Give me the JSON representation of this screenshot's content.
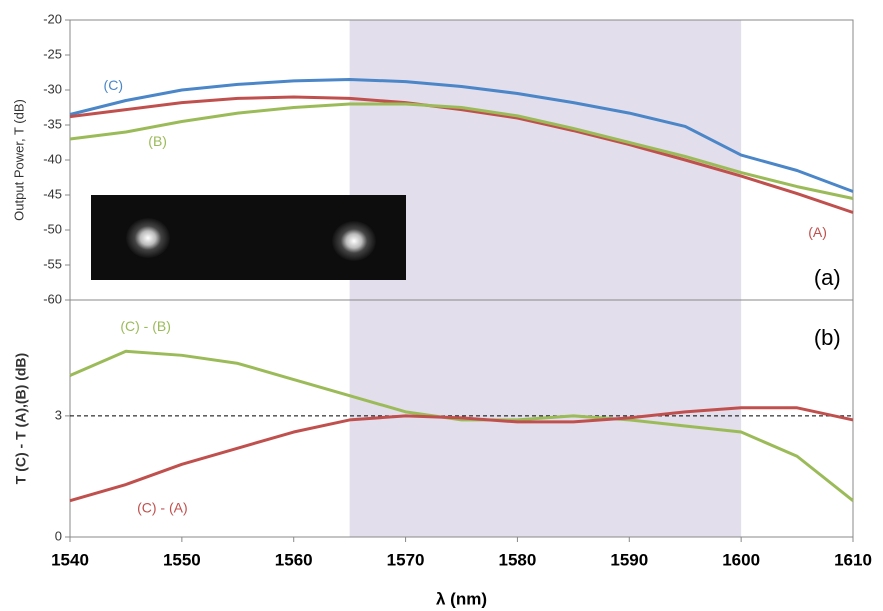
{
  "chart_data": [
    {
      "type": "line",
      "ylabel": "Output Power, T (dB)",
      "xlim": [
        1540,
        1610
      ],
      "ylim": [
        -60,
        -20
      ],
      "yticks": [
        -20,
        -25,
        -30,
        -35,
        -40,
        -45,
        -50,
        -55,
        -60
      ],
      "shaded_region": [
        1565,
        1600
      ],
      "x": [
        1540,
        1545,
        1550,
        1555,
        1560,
        1565,
        1570,
        1575,
        1580,
        1585,
        1590,
        1595,
        1600,
        1605,
        1610
      ],
      "series": [
        {
          "name": "(C)",
          "color": "#4a86c8",
          "values": [
            -33.5,
            -31.5,
            -30,
            -29.2,
            -28.7,
            -28.5,
            -28.8,
            -29.5,
            -30.5,
            -31.8,
            -33.3,
            -35.2,
            -39.3,
            -41.5,
            -44.5
          ]
        },
        {
          "name": "(A)",
          "color": "#c0504d",
          "values": [
            -33.8,
            -32.8,
            -31.8,
            -31.2,
            -31,
            -31.2,
            -31.8,
            -32.8,
            -34,
            -35.8,
            -37.8,
            -40,
            -42.3,
            -44.8,
            -47.5
          ]
        },
        {
          "name": "(B)",
          "color": "#9bbb59",
          "values": [
            -37,
            -36,
            -34.5,
            -33.3,
            -32.5,
            -32,
            -32,
            -32.5,
            -33.7,
            -35.5,
            -37.5,
            -39.5,
            -41.8,
            -43.8,
            -45.5
          ]
        }
      ],
      "annotations": [
        {
          "text": "(C)",
          "x": 1543,
          "y": -29.5,
          "color": "#4a86c8"
        },
        {
          "text": "(B)",
          "x": 1547,
          "y": -37.5,
          "color": "#9bbb59"
        },
        {
          "text": "(A)",
          "x": 1606,
          "y": -50.5,
          "color": "#c0504d"
        },
        {
          "text": "(a)",
          "x": 1606.5,
          "y": -57,
          "color": "#000000"
        }
      ]
    },
    {
      "type": "line",
      "ylabel": "T (C) - T (A),(B) (dB)",
      "xlabel": "λ (nm)",
      "xlim": [
        1540,
        1610
      ],
      "ylim": [
        0,
        5.87
      ],
      "yticks": [
        0,
        3
      ],
      "xticks": [
        1540,
        1550,
        1560,
        1570,
        1580,
        1590,
        1600,
        1610
      ],
      "shaded_region": [
        1565,
        1600
      ],
      "reference_line": 3,
      "x": [
        1540,
        1545,
        1550,
        1555,
        1560,
        1565,
        1570,
        1575,
        1580,
        1585,
        1590,
        1595,
        1600,
        1605,
        1610
      ],
      "series": [
        {
          "name": "(C) - (B)",
          "color": "#9bbb59",
          "values": [
            4.0,
            4.6,
            4.5,
            4.3,
            3.9,
            3.5,
            3.1,
            2.9,
            2.9,
            3.0,
            2.9,
            2.75,
            2.6,
            2.0,
            0.9
          ]
        },
        {
          "name": "(C) - (A)",
          "color": "#c0504d",
          "values": [
            0.9,
            1.3,
            1.8,
            2.2,
            2.6,
            2.9,
            3.0,
            2.95,
            2.85,
            2.85,
            2.95,
            3.1,
            3.2,
            3.2,
            2.9
          ]
        }
      ],
      "annotations": [
        {
          "text": "(C) - (B)",
          "x": 1544.5,
          "y": 5.2,
          "color": "#9bbb59"
        },
        {
          "text": "(C) - (A)",
          "x": 1546,
          "y": 0.7,
          "color": "#c0504d"
        },
        {
          "text": "(b)",
          "x": 1606.5,
          "y": 4.9,
          "color": "#000000"
        }
      ]
    }
  ]
}
